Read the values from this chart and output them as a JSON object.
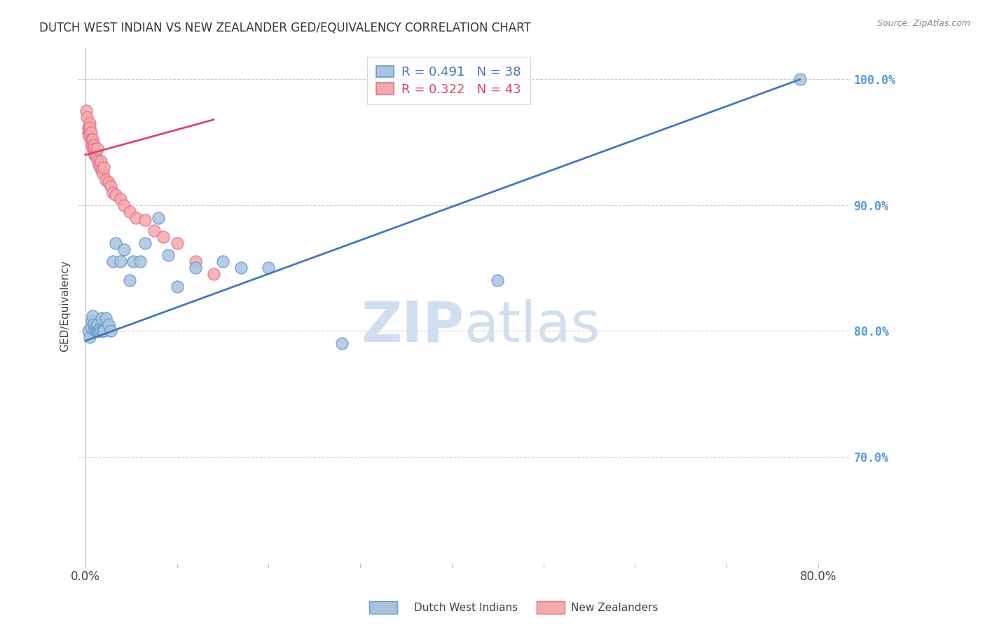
{
  "title": "DUTCH WEST INDIAN VS NEW ZEALANDER GED/EQUIVALENCY CORRELATION CHART",
  "source": "Source: ZipAtlas.com",
  "ylabel": "GED/Equivalency",
  "xlabel_ticks_show": [
    "0.0%",
    "80.0%"
  ],
  "xlabel_tick_positions": [
    0.0,
    0.8
  ],
  "xlabel_all_ticks": [
    0.0,
    0.1,
    0.2,
    0.3,
    0.4,
    0.5,
    0.6,
    0.7,
    0.8
  ],
  "ylabel_ticks": [
    "100.0%",
    "90.0%",
    "80.0%",
    "70.0%"
  ],
  "ylabel_vals": [
    1.0,
    0.9,
    0.8,
    0.7
  ],
  "ylim": [
    0.615,
    1.025
  ],
  "xlim": [
    -0.008,
    0.835
  ],
  "blue_label": "Dutch West Indians",
  "pink_label": "New Zealanders",
  "blue_R": "R = 0.491",
  "blue_N": "N = 38",
  "pink_R": "R = 0.322",
  "pink_N": "N = 43",
  "blue_color": "#A8C4E0",
  "pink_color": "#F4AAAA",
  "blue_edge_color": "#6699CC",
  "pink_edge_color": "#E07090",
  "blue_line_color": "#4477BB",
  "pink_line_color": "#DD4466",
  "watermark_zip": "ZIP",
  "watermark_atlas": "atlas",
  "watermark_color": "#D0DFF0",
  "background_color": "#FFFFFF",
  "grid_color": "#CCCCCC",
  "right_tick_color": "#5599DD",
  "blue_dots_x": [
    0.003,
    0.005,
    0.006,
    0.007,
    0.008,
    0.009,
    0.01,
    0.011,
    0.012,
    0.013,
    0.014,
    0.015,
    0.016,
    0.017,
    0.018,
    0.019,
    0.02,
    0.022,
    0.025,
    0.028,
    0.03,
    0.033,
    0.038,
    0.042,
    0.048,
    0.052,
    0.06,
    0.065,
    0.08,
    0.09,
    0.1,
    0.12,
    0.15,
    0.17,
    0.2,
    0.28,
    0.45,
    0.78
  ],
  "blue_dots_y": [
    0.8,
    0.795,
    0.803,
    0.808,
    0.812,
    0.805,
    0.802,
    0.8,
    0.8,
    0.805,
    0.8,
    0.8,
    0.802,
    0.8,
    0.81,
    0.8,
    0.8,
    0.81,
    0.805,
    0.8,
    0.855,
    0.87,
    0.855,
    0.865,
    0.84,
    0.855,
    0.855,
    0.87,
    0.89,
    0.86,
    0.835,
    0.85,
    0.855,
    0.85,
    0.85,
    0.79,
    0.84,
    1.0
  ],
  "pink_dots_x": [
    0.001,
    0.002,
    0.003,
    0.003,
    0.004,
    0.004,
    0.005,
    0.005,
    0.006,
    0.006,
    0.007,
    0.007,
    0.008,
    0.008,
    0.009,
    0.009,
    0.01,
    0.01,
    0.011,
    0.012,
    0.013,
    0.014,
    0.015,
    0.016,
    0.017,
    0.018,
    0.019,
    0.02,
    0.022,
    0.025,
    0.028,
    0.03,
    0.033,
    0.038,
    0.042,
    0.048,
    0.055,
    0.065,
    0.075,
    0.085,
    0.1,
    0.12,
    0.14
  ],
  "pink_dots_y": [
    0.975,
    0.97,
    0.962,
    0.958,
    0.96,
    0.955,
    0.965,
    0.962,
    0.958,
    0.952,
    0.95,
    0.948,
    0.952,
    0.945,
    0.948,
    0.942,
    0.945,
    0.94,
    0.94,
    0.938,
    0.945,
    0.935,
    0.932,
    0.93,
    0.935,
    0.928,
    0.925,
    0.93,
    0.92,
    0.918,
    0.915,
    0.91,
    0.908,
    0.905,
    0.9,
    0.895,
    0.89,
    0.888,
    0.88,
    0.875,
    0.87,
    0.855,
    0.845
  ],
  "blue_trend_x": [
    0.0,
    0.78
  ],
  "blue_trend_y": [
    0.792,
    1.0
  ],
  "pink_trend_x": [
    0.0,
    0.14
  ],
  "pink_trend_y": [
    0.94,
    0.968
  ]
}
